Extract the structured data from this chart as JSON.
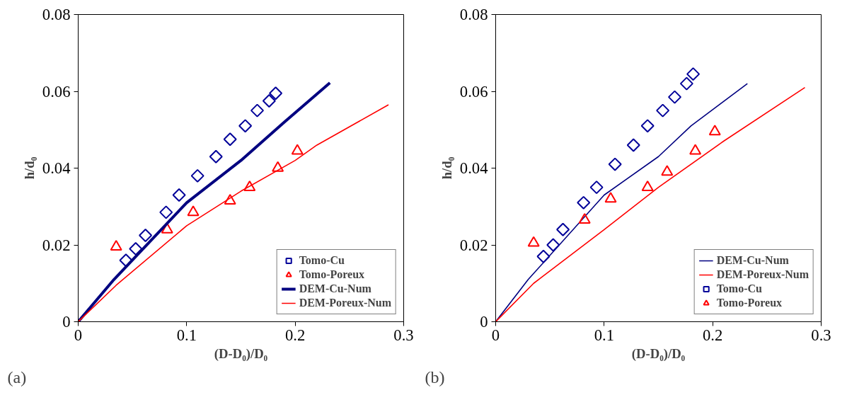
{
  "chart_data": [
    {
      "type": "scatter",
      "xlabel": "(D-D₀)/D₀",
      "ylabel": "h/d₀",
      "xlim": [
        0,
        0.3
      ],
      "ylim": [
        0,
        0.08
      ],
      "xticks": [
        0,
        0.1,
        0.2,
        0.3
      ],
      "yticks": [
        0,
        0.02,
        0.04,
        0.06,
        0.08
      ],
      "grid": false,
      "legend": "bottom right",
      "annotations": [
        "(a)"
      ],
      "series": [
        {
          "name": "Tomo-Cu",
          "marker": "diamond",
          "color": "#000099",
          "x": [
            0.044,
            0.053,
            0.062,
            0.081,
            0.093,
            0.11,
            0.127,
            0.14,
            0.154,
            0.165,
            0.176,
            0.182
          ],
          "values": [
            0.016,
            0.019,
            0.0225,
            0.0285,
            0.033,
            0.038,
            0.043,
            0.0475,
            0.051,
            0.055,
            0.0575,
            0.0595
          ]
        },
        {
          "name": "Tomo-Poreux",
          "marker": "triangle",
          "color": "#ff0000",
          "x": [
            0.035,
            0.082,
            0.106,
            0.14,
            0.158,
            0.184,
            0.202
          ],
          "values": [
            0.0195,
            0.024,
            0.0285,
            0.0315,
            0.035,
            0.04,
            0.0445
          ]
        },
        {
          "name": "DEM-Cu-Num",
          "type": "line",
          "line_style": "solid",
          "color": "#000080",
          "x": [
            0,
            0.033,
            0.1,
            0.15,
            0.19,
            0.232
          ],
          "values": [
            0,
            0.011,
            0.031,
            0.042,
            0.052,
            0.0622
          ]
        },
        {
          "name": "DEM-Poreux-Num",
          "type": "line",
          "line_style": "solid",
          "color": "#ff0000",
          "x": [
            0,
            0.035,
            0.1,
            0.15,
            0.2,
            0.22,
            0.286
          ],
          "values": [
            0,
            0.0095,
            0.025,
            0.034,
            0.042,
            0.046,
            0.0565
          ]
        }
      ]
    },
    {
      "type": "scatter",
      "xlabel": "(D-D₀)/D₀",
      "ylabel": "h/d₀",
      "xlim": [
        0,
        0.3
      ],
      "ylim": [
        0,
        0.08
      ],
      "xticks": [
        0,
        0.1,
        0.2,
        0.3
      ],
      "yticks": [
        0,
        0.02,
        0.04,
        0.06,
        0.08
      ],
      "grid": false,
      "legend": "bottom right",
      "annotations": [
        "(b)"
      ],
      "series": [
        {
          "name": "DEM-Cu-Num",
          "type": "line",
          "line_style": "solid",
          "color": "#000080",
          "x": [
            0,
            0.03,
            0.1,
            0.15,
            0.18,
            0.232
          ],
          "values": [
            0,
            0.011,
            0.033,
            0.043,
            0.051,
            0.062
          ]
        },
        {
          "name": "DEM-Poreux-Num",
          "type": "line",
          "line_style": "solid",
          "color": "#ff0000",
          "x": [
            0,
            0.035,
            0.1,
            0.15,
            0.21,
            0.285
          ],
          "values": [
            0,
            0.01,
            0.024,
            0.035,
            0.047,
            0.061
          ]
        },
        {
          "name": "Tomo-Cu",
          "marker": "diamond",
          "color": "#000099",
          "x": [
            0.044,
            0.053,
            0.062,
            0.081,
            0.093,
            0.11,
            0.127,
            0.14,
            0.154,
            0.165,
            0.176,
            0.182
          ],
          "values": [
            0.017,
            0.02,
            0.024,
            0.031,
            0.035,
            0.041,
            0.046,
            0.051,
            0.055,
            0.0585,
            0.062,
            0.0645
          ]
        },
        {
          "name": "Tomo-Poreux",
          "marker": "triangle",
          "color": "#ff0000",
          "x": [
            0.035,
            0.082,
            0.106,
            0.14,
            0.158,
            0.184,
            0.202
          ],
          "values": [
            0.0205,
            0.0265,
            0.032,
            0.035,
            0.039,
            0.0445,
            0.0495
          ]
        }
      ]
    }
  ]
}
